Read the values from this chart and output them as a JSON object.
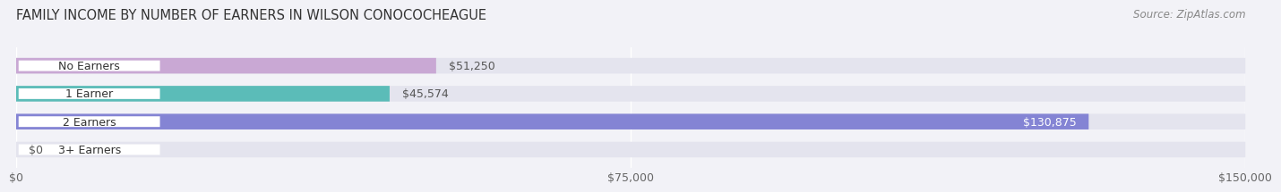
{
  "title": "FAMILY INCOME BY NUMBER OF EARNERS IN WILSON CONOCOCHEAGUE",
  "source": "Source: ZipAtlas.com",
  "categories": [
    "No Earners",
    "1 Earner",
    "2 Earners",
    "3+ Earners"
  ],
  "values": [
    51250,
    45574,
    130875,
    0
  ],
  "bar_colors": [
    "#c9a8d4",
    "#5bbcb8",
    "#8484d4",
    "#f5a0b8"
  ],
  "label_colors": [
    "#555555",
    "#555555",
    "#ffffff",
    "#555555"
  ],
  "value_labels": [
    "$51,250",
    "$45,574",
    "$130,875",
    "$0"
  ],
  "xlim": [
    0,
    150000
  ],
  "xticks": [
    0,
    75000,
    150000
  ],
  "xticklabels": [
    "$0",
    "$75,000",
    "$150,000"
  ],
  "background_color": "#f2f2f7",
  "bar_bg_color": "#e4e4ee",
  "title_fontsize": 10.5,
  "source_fontsize": 8.5,
  "label_fontsize": 9,
  "tick_fontsize": 9
}
